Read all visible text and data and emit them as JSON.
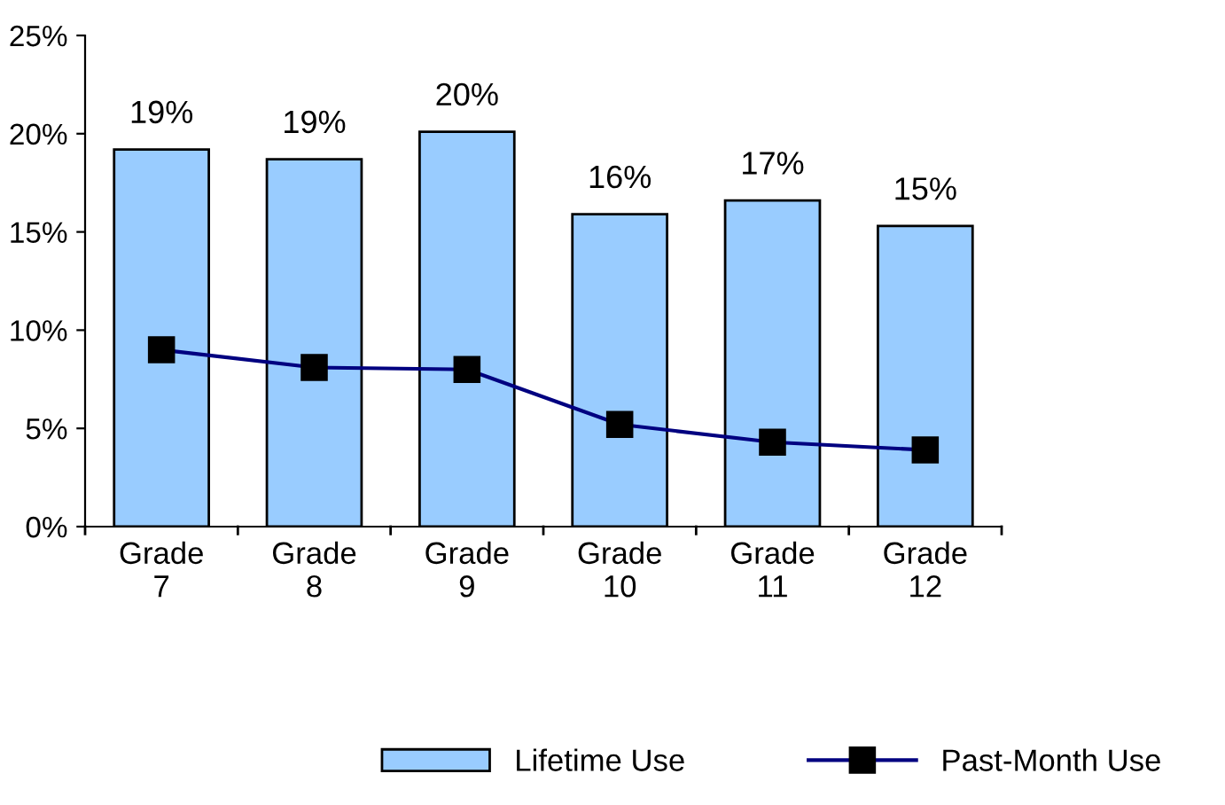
{
  "chart_data": {
    "type": "bar",
    "categories": [
      "Grade\n7",
      "Grade\n8",
      "Grade\n9",
      "Grade\n10",
      "Grade\n11",
      "Grade\n12"
    ],
    "series": [
      {
        "name": "Lifetime Use",
        "color": "#99ccff",
        "values": [
          19.2,
          18.7,
          20.1,
          15.9,
          16.6,
          15.3
        ],
        "value_labels": [
          "19%",
          "19%",
          "20%",
          "16%",
          "17%",
          "15%"
        ]
      },
      {
        "name": "Past-Month Use",
        "type": "line",
        "color": "#000080",
        "marker": "square",
        "values": [
          9.0,
          8.1,
          8.0,
          5.2,
          4.3,
          3.9
        ]
      }
    ],
    "ylim": [
      0,
      25
    ],
    "yticks": [
      {
        "value": 0,
        "label": "0%"
      },
      {
        "value": 5,
        "label": "5%"
      },
      {
        "value": 10,
        "label": "10%"
      },
      {
        "value": 15,
        "label": "15%"
      },
      {
        "value": 20,
        "label": "20%"
      },
      {
        "value": 25,
        "label": "25%"
      }
    ],
    "grid": false,
    "legend": "bottom"
  }
}
